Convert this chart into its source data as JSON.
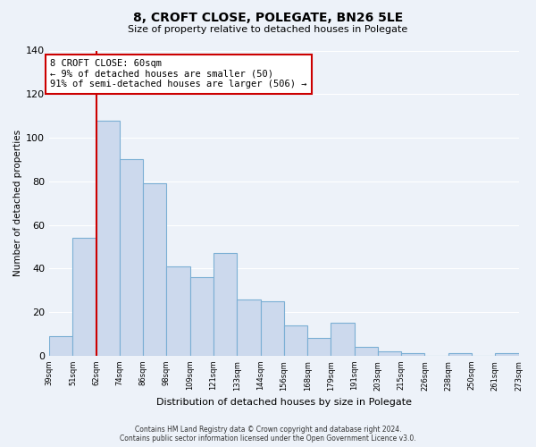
{
  "title": "8, CROFT CLOSE, POLEGATE, BN26 5LE",
  "subtitle": "Size of property relative to detached houses in Polegate",
  "xlabel": "Distribution of detached houses by size in Polegate",
  "ylabel": "Number of detached properties",
  "bar_labels": [
    "39sqm",
    "51sqm",
    "62sqm",
    "74sqm",
    "86sqm",
    "98sqm",
    "109sqm",
    "121sqm",
    "133sqm",
    "144sqm",
    "156sqm",
    "168sqm",
    "179sqm",
    "191sqm",
    "203sqm",
    "215sqm",
    "226sqm",
    "238sqm",
    "250sqm",
    "261sqm",
    "273sqm"
  ],
  "bar_values": [
    9,
    54,
    108,
    90,
    79,
    41,
    36,
    47,
    26,
    25,
    14,
    8,
    15,
    4,
    2,
    1,
    0,
    1,
    0,
    1
  ],
  "bar_color": "#ccd9ed",
  "bar_edge_color": "#7bafd4",
  "vline_color": "#cc0000",
  "annotation_text": "8 CROFT CLOSE: 60sqm\n← 9% of detached houses are smaller (50)\n91% of semi-detached houses are larger (506) →",
  "annotation_box_color": "#ffffff",
  "annotation_box_edge": "#cc0000",
  "ylim": [
    0,
    140
  ],
  "yticks": [
    0,
    20,
    40,
    60,
    80,
    100,
    120,
    140
  ],
  "footer_line1": "Contains HM Land Registry data © Crown copyright and database right 2024.",
  "footer_line2": "Contains public sector information licensed under the Open Government Licence v3.0.",
  "bg_color": "#edf2f9"
}
